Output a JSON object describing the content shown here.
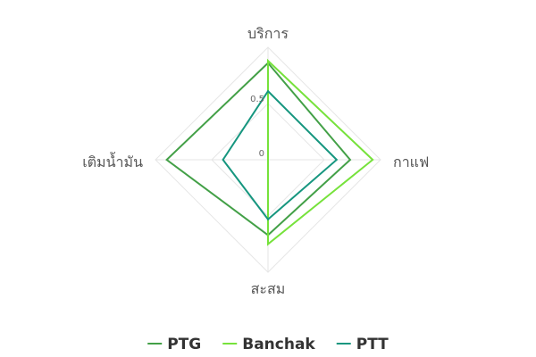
{
  "chart_data": {
    "type": "radar",
    "axes": [
      "บริการ",
      "กาแฟ",
      "สะสม",
      "เติมน้ำมัน"
    ],
    "ticks": [
      "0",
      "0.5"
    ],
    "range": [
      0,
      1
    ],
    "grid": true,
    "legend_position": "bottom",
    "series": [
      {
        "name": "PTG",
        "color": "#43a047",
        "values": [
          0.86,
          0.73,
          0.67,
          0.9
        ]
      },
      {
        "name": "Banchak",
        "color": "#76e23b",
        "values": [
          0.88,
          0.93,
          0.75,
          0.0
        ]
      },
      {
        "name": "PTT",
        "color": "#16967f",
        "values": [
          0.61,
          0.61,
          0.53,
          0.4
        ]
      }
    ]
  }
}
